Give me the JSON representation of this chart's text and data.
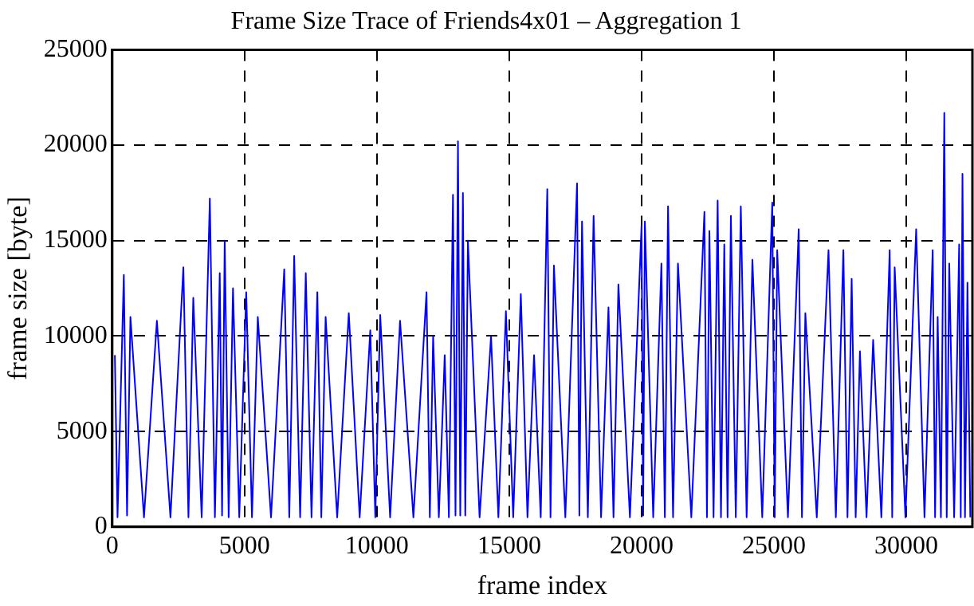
{
  "chart_data": {
    "type": "line",
    "title": "Frame Size Trace of Friends4x01 – Aggregation 1",
    "xlabel": "frame index",
    "ylabel": "frame size [byte]",
    "xlim": [
      0,
      32500
    ],
    "xticks": [
      0,
      5000,
      10000,
      15000,
      20000,
      25000,
      30000
    ],
    "ylim": [
      0,
      25000
    ],
    "yticks": [
      0,
      5000,
      10000,
      15000,
      20000,
      25000
    ],
    "grid": true,
    "legend": false,
    "marker": "none",
    "series": [
      {
        "color": "#0000ff",
        "x": [
          100,
          200,
          438,
          560,
          688,
          1200,
          1688,
          2200,
          2688,
          2880,
          3063,
          3380,
          3688,
          3880,
          4063,
          4150,
          4250,
          4400,
          4563,
          4800,
          5063,
          5280,
          5500,
          6000,
          6500,
          6690,
          6875,
          7100,
          7313,
          7530,
          7750,
          7900,
          8063,
          8500,
          8938,
          9350,
          9750,
          9940,
          10125,
          10500,
          10875,
          11380,
          11875,
          12000,
          12125,
          12340,
          12563,
          12720,
          12875,
          12970,
          13063,
          13150,
          13250,
          13340,
          13438,
          13880,
          14313,
          14590,
          14875,
          15150,
          15438,
          15690,
          15938,
          16190,
          16438,
          16560,
          16688,
          17120,
          17563,
          17650,
          17750,
          17970,
          18188,
          18470,
          18750,
          18940,
          19125,
          19560,
          20000,
          20060,
          20125,
          20440,
          20750,
          20880,
          21000,
          21190,
          21375,
          21880,
          22375,
          22470,
          22563,
          22720,
          22875,
          23000,
          23125,
          23250,
          23375,
          23560,
          23750,
          23970,
          24188,
          24560,
          24938,
          25030,
          25125,
          25530,
          25938,
          26060,
          26188,
          26620,
          27063,
          27340,
          27625,
          27780,
          27938,
          28090,
          28250,
          28500,
          28750,
          29060,
          29375,
          29470,
          29563,
          29970,
          30375,
          30690,
          31000,
          31090,
          31188,
          31310,
          31438,
          31530,
          31625,
          31810,
          32000,
          32060,
          32125,
          32220,
          32313,
          32420
        ],
        "values": [
          9000,
          500,
          13200,
          600,
          11000,
          500,
          10800,
          500,
          13600,
          500,
          12000,
          500,
          17200,
          500,
          13300,
          600,
          15000,
          500,
          12500,
          500,
          12300,
          500,
          11000,
          500,
          13500,
          500,
          14200,
          500,
          13300,
          500,
          12300,
          500,
          11000,
          500,
          11200,
          500,
          10300,
          500,
          11100,
          500,
          10800,
          500,
          12300,
          500,
          10000,
          500,
          9000,
          500,
          17400,
          600,
          20200,
          600,
          17500,
          600,
          15000,
          500,
          10000,
          500,
          11300,
          500,
          12200,
          500,
          9000,
          500,
          17700,
          500,
          13700,
          500,
          18000,
          600,
          16000,
          500,
          16300,
          500,
          11500,
          500,
          12700,
          500,
          15800,
          600,
          16000,
          500,
          13800,
          500,
          16800,
          500,
          13800,
          500,
          16500,
          500,
          15500,
          500,
          17100,
          500,
          14800,
          500,
          16300,
          500,
          16800,
          500,
          14000,
          500,
          17000,
          500,
          14500,
          500,
          15600,
          500,
          11200,
          500,
          14500,
          500,
          14500,
          500,
          13000,
          500,
          9200,
          500,
          9800,
          500,
          14500,
          500,
          13600,
          500,
          15600,
          500,
          14500,
          500,
          11000,
          500,
          21700,
          500,
          13800,
          500,
          14800,
          500,
          18500,
          500,
          12800,
          500
        ]
      }
    ]
  }
}
